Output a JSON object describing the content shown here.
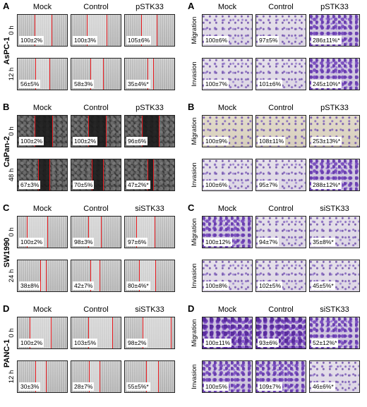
{
  "wound": [
    {
      "letter": "A",
      "line": "AsPC-1",
      "columns": [
        "Mock",
        "Control",
        "pSTK33"
      ],
      "rows": [
        {
          "time": "0 h",
          "values": [
            "100±2%",
            "100±3%",
            "105±6%"
          ]
        },
        {
          "time": "12 h",
          "values": [
            "56±5%",
            "58±3%",
            "35±4%*"
          ]
        }
      ]
    },
    {
      "letter": "B",
      "line": "CaPan-2",
      "columns": [
        "Mock",
        "Control",
        "pSTK33"
      ],
      "rows": [
        {
          "time": "0 h",
          "values": [
            "100±2%",
            "100±2%",
            "96±6%"
          ]
        },
        {
          "time": "48 h",
          "values": [
            "67±3%",
            "70±5%",
            "47±2%*"
          ]
        }
      ]
    },
    {
      "letter": "C",
      "line": "SW1990",
      "columns": [
        "Mock",
        "Control",
        "siSTK33"
      ],
      "rows": [
        {
          "time": "0 h",
          "values": [
            "100±2%",
            "98±3%",
            "97±6%"
          ]
        },
        {
          "time": "24 h",
          "values": [
            "38±8%",
            "42±7%",
            "80±4%*"
          ]
        }
      ]
    },
    {
      "letter": "D",
      "line": "PANC-1",
      "columns": [
        "Mock",
        "Control",
        "siSTK33"
      ],
      "rows": [
        {
          "time": "0 h",
          "values": [
            "100±2%",
            "103±5%",
            "98±2%"
          ]
        },
        {
          "time": "12 h",
          "values": [
            "30±3%",
            "28±7%",
            "55±5%*"
          ]
        }
      ]
    }
  ],
  "transwell": [
    {
      "letter": "A",
      "columns": [
        "Mock",
        "Control",
        "pSTK33"
      ],
      "rows": [
        {
          "assay": "Migration",
          "values": [
            "100±6%",
            "97±5%",
            "286±11%*"
          ]
        },
        {
          "assay": "Invasion",
          "values": [
            "100±7%",
            "101±6%",
            "245±10%*"
          ]
        }
      ]
    },
    {
      "letter": "B",
      "columns": [
        "Mock",
        "Control",
        "pSTK33"
      ],
      "rows": [
        {
          "assay": "Migration",
          "values": [
            "100±9%",
            "108±11%",
            "253±13%*"
          ]
        },
        {
          "assay": "Invasion",
          "values": [
            "100±6%",
            "95±7%",
            "288±12%*"
          ]
        }
      ]
    },
    {
      "letter": "C",
      "columns": [
        "Mock",
        "Control",
        "siSTK33"
      ],
      "rows": [
        {
          "assay": "Migration",
          "values": [
            "100±12%",
            "94±7%",
            "35±8%*"
          ]
        },
        {
          "assay": "Invasion",
          "values": [
            "100±8%",
            "102±5%",
            "45±5%*"
          ]
        }
      ]
    },
    {
      "letter": "D",
      "columns": [
        "Mock",
        "Control",
        "siSTK33"
      ],
      "rows": [
        {
          "assay": "Migration",
          "values": [
            "100±11%",
            "93±6%",
            "52±12%*"
          ]
        },
        {
          "assay": "Invasion",
          "values": [
            "100±5%",
            "109±7%",
            "46±6%*"
          ]
        }
      ]
    }
  ]
}
